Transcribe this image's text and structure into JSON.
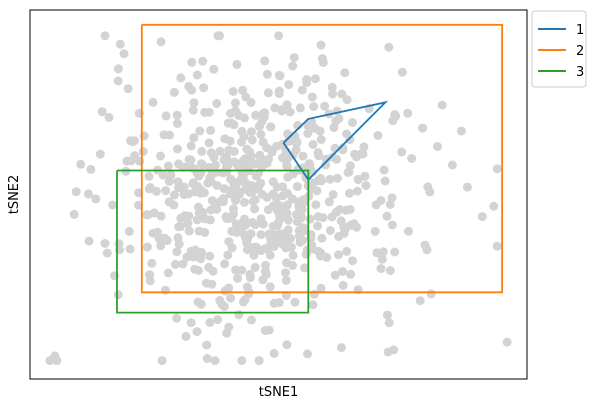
{
  "chart_data": {
    "type": "scatter",
    "xlabel": "tSNE1",
    "ylabel": "tSNE2",
    "xlim": [
      0,
      100
    ],
    "ylim": [
      0,
      100
    ],
    "x_ticks_visible": false,
    "y_ticks_visible": false,
    "grid": false,
    "legend_position": "outside-top-right",
    "point_color": "#d3d3d3",
    "points_note_free": true,
    "points": {
      "x": [
        4,
        18,
        20,
        25,
        28,
        31,
        34,
        37,
        40,
        43,
        46,
        49,
        52,
        55,
        58,
        61,
        64,
        67,
        70,
        73,
        76,
        79,
        82,
        85,
        88,
        91,
        94,
        17,
        96,
        22
      ],
      "y": [
        5,
        35,
        40,
        45,
        48,
        50,
        55,
        60,
        62,
        58,
        52,
        47,
        43,
        41,
        44,
        50,
        56,
        61,
        66,
        70,
        72,
        68,
        63,
        58,
        52,
        44,
        36,
        28,
        10,
        72
      ]
    },
    "series": [
      {
        "name": "1",
        "color": "#1f77b4",
        "x": [
          51.0,
          56.0,
          71.5,
          56.0,
          51.0
        ],
        "y": [
          64.0,
          70.5,
          75.0,
          54.0,
          64.0
        ]
      },
      {
        "name": "2",
        "color": "#ff7f0e",
        "x": [
          22.5,
          95.0,
          95.0,
          22.5,
          22.5
        ],
        "y": [
          96.0,
          96.0,
          23.5,
          23.5,
          96.0
        ]
      },
      {
        "name": "3",
        "color": "#2ca02c",
        "x": [
          17.5,
          56.0,
          56.0,
          17.5,
          17.5
        ],
        "y": [
          56.5,
          56.5,
          18.0,
          18.0,
          56.5
        ]
      }
    ]
  }
}
